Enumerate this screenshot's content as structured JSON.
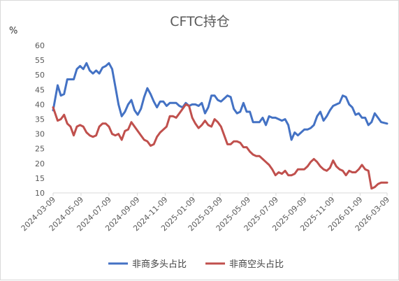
{
  "chart_data": {
    "type": "line",
    "title": "CFTC持仓",
    "unit": "%",
    "xlabel": "",
    "ylabel": "",
    "ylim": [
      10,
      60
    ],
    "yticks": [
      10,
      15,
      20,
      25,
      30,
      35,
      40,
      45,
      50,
      55,
      60
    ],
    "xlim": [
      "2024-03-09",
      "2026-03-09"
    ],
    "xticks": [
      "2024-03-09",
      "2024-05-09",
      "2024-07-09",
      "2024-09-09",
      "2024-11-09",
      "2025-01-09",
      "2025-03-09",
      "2025-05-09",
      "2025-07-09",
      "2025-09-09",
      "2025-11-09",
      "2026-01-09",
      "2026-03-09"
    ],
    "grid": false,
    "legend_position": "bottom",
    "series": [
      {
        "name": "非商多头占比",
        "color": "#4472c4",
        "points": [
          [
            "2024-03-09",
            38
          ],
          [
            "2024-03-19",
            46.5
          ],
          [
            "2024-03-26",
            43
          ],
          [
            "2024-04-02",
            43.5
          ],
          [
            "2024-04-09",
            48.5
          ],
          [
            "2024-04-16",
            48.5
          ],
          [
            "2024-04-23",
            48.5
          ],
          [
            "2024-04-30",
            52
          ],
          [
            "2024-05-07",
            53
          ],
          [
            "2024-05-14",
            52
          ],
          [
            "2024-05-21",
            54
          ],
          [
            "2024-05-28",
            51.5
          ],
          [
            "2024-06-04",
            50.5
          ],
          [
            "2024-06-11",
            51.5
          ],
          [
            "2024-06-18",
            50.5
          ],
          [
            "2024-06-25",
            52.5
          ],
          [
            "2024-07-02",
            53
          ],
          [
            "2024-07-09",
            54
          ],
          [
            "2024-07-16",
            52
          ],
          [
            "2024-07-23",
            46
          ],
          [
            "2024-07-30",
            40
          ],
          [
            "2024-08-06",
            36
          ],
          [
            "2024-08-13",
            37.5
          ],
          [
            "2024-08-20",
            40
          ],
          [
            "2024-08-27",
            41.5
          ],
          [
            "2024-09-03",
            38
          ],
          [
            "2024-09-10",
            36.5
          ],
          [
            "2024-09-17",
            38.5
          ],
          [
            "2024-09-24",
            42.5
          ],
          [
            "2024-10-01",
            45.5
          ],
          [
            "2024-10-08",
            43.5
          ],
          [
            "2024-10-15",
            41
          ],
          [
            "2024-10-22",
            39
          ],
          [
            "2024-10-29",
            41
          ],
          [
            "2024-11-05",
            41
          ],
          [
            "2024-11-12",
            39.5
          ],
          [
            "2024-11-19",
            40.5
          ],
          [
            "2024-11-26",
            40.5
          ],
          [
            "2024-12-03",
            40.5
          ],
          [
            "2024-12-10",
            39.5
          ],
          [
            "2024-12-17",
            39
          ],
          [
            "2024-12-24",
            40.5
          ],
          [
            "2024-12-31",
            39.5
          ],
          [
            "2025-01-07",
            40
          ],
          [
            "2025-01-14",
            40
          ],
          [
            "2025-01-21",
            39.5
          ],
          [
            "2025-01-28",
            40.5
          ],
          [
            "2025-02-04",
            37
          ],
          [
            "2025-02-11",
            39
          ],
          [
            "2025-02-18",
            43
          ],
          [
            "2025-02-25",
            43
          ],
          [
            "2025-03-04",
            41.5
          ],
          [
            "2025-03-11",
            41
          ],
          [
            "2025-03-18",
            42
          ],
          [
            "2025-03-25",
            43
          ],
          [
            "2025-04-01",
            42.5
          ],
          [
            "2025-04-08",
            38.5
          ],
          [
            "2025-04-15",
            37
          ],
          [
            "2025-04-22",
            37.5
          ],
          [
            "2025-04-29",
            40.5
          ],
          [
            "2025-05-06",
            37.5
          ],
          [
            "2025-05-13",
            37.5
          ],
          [
            "2025-05-20",
            34
          ],
          [
            "2025-05-27",
            34
          ],
          [
            "2025-06-03",
            34
          ],
          [
            "2025-06-10",
            35.5
          ],
          [
            "2025-06-17",
            33
          ],
          [
            "2025-06-24",
            36
          ],
          [
            "2025-07-01",
            35.5
          ],
          [
            "2025-07-08",
            35.5
          ],
          [
            "2025-07-15",
            35
          ],
          [
            "2025-07-22",
            34.5
          ],
          [
            "2025-07-29",
            35
          ],
          [
            "2025-08-05",
            33
          ],
          [
            "2025-08-12",
            28
          ],
          [
            "2025-08-19",
            30.5
          ],
          [
            "2025-08-26",
            29.5
          ],
          [
            "2025-09-02",
            30.5
          ],
          [
            "2025-09-09",
            31.5
          ],
          [
            "2025-09-16",
            31.5
          ],
          [
            "2025-09-23",
            32
          ],
          [
            "2025-09-30",
            33
          ],
          [
            "2025-10-07",
            36
          ],
          [
            "2025-10-14",
            37.5
          ],
          [
            "2025-10-21",
            34.5
          ],
          [
            "2025-10-28",
            36
          ],
          [
            "2025-11-04",
            38
          ],
          [
            "2025-11-11",
            39.5
          ],
          [
            "2025-11-18",
            40
          ],
          [
            "2025-11-25",
            40.5
          ],
          [
            "2025-12-02",
            43
          ],
          [
            "2025-12-09",
            42.5
          ],
          [
            "2025-12-16",
            40
          ],
          [
            "2025-12-23",
            39
          ],
          [
            "2025-12-30",
            36.5
          ],
          [
            "2026-01-06",
            37
          ],
          [
            "2026-01-13",
            35.5
          ],
          [
            "2026-01-20",
            35.5
          ],
          [
            "2026-01-27",
            33
          ],
          [
            "2026-02-03",
            34
          ],
          [
            "2026-02-10",
            37
          ],
          [
            "2026-02-17",
            35.5
          ],
          [
            "2026-02-24",
            34
          ],
          [
            "2026-03-09",
            33.5
          ]
        ]
      },
      {
        "name": "非商空头占比",
        "color": "#c0504d",
        "points": [
          [
            "2024-03-09",
            39
          ],
          [
            "2024-03-19",
            34.5
          ],
          [
            "2024-03-26",
            35
          ],
          [
            "2024-04-02",
            36.5
          ],
          [
            "2024-04-09",
            33.5
          ],
          [
            "2024-04-16",
            32.5
          ],
          [
            "2024-04-23",
            29.5
          ],
          [
            "2024-04-30",
            32.5
          ],
          [
            "2024-05-07",
            33
          ],
          [
            "2024-05-14",
            32.5
          ],
          [
            "2024-05-21",
            30.5
          ],
          [
            "2024-05-28",
            29.5
          ],
          [
            "2024-06-04",
            29
          ],
          [
            "2024-06-11",
            29.5
          ],
          [
            "2024-06-18",
            32.5
          ],
          [
            "2024-06-25",
            33.5
          ],
          [
            "2024-07-02",
            33.5
          ],
          [
            "2024-07-09",
            32.5
          ],
          [
            "2024-07-16",
            30
          ],
          [
            "2024-07-23",
            29.5
          ],
          [
            "2024-07-30",
            30
          ],
          [
            "2024-08-06",
            28
          ],
          [
            "2024-08-13",
            31
          ],
          [
            "2024-08-20",
            31.5
          ],
          [
            "2024-08-27",
            34
          ],
          [
            "2024-09-03",
            32.5
          ],
          [
            "2024-09-10",
            31
          ],
          [
            "2024-09-17",
            29.5
          ],
          [
            "2024-09-24",
            28
          ],
          [
            "2024-10-01",
            27.5
          ],
          [
            "2024-10-08",
            26
          ],
          [
            "2024-10-15",
            26.5
          ],
          [
            "2024-10-22",
            29
          ],
          [
            "2024-10-29",
            30.5
          ],
          [
            "2024-11-05",
            31.5
          ],
          [
            "2024-11-12",
            32.5
          ],
          [
            "2024-11-19",
            36
          ],
          [
            "2024-11-26",
            36
          ],
          [
            "2024-12-03",
            35.5
          ],
          [
            "2024-12-10",
            37
          ],
          [
            "2024-12-17",
            38.5
          ],
          [
            "2024-12-24",
            40
          ],
          [
            "2024-12-31",
            39.5
          ],
          [
            "2025-01-07",
            35.5
          ],
          [
            "2025-01-14",
            33.5
          ],
          [
            "2025-01-21",
            32
          ],
          [
            "2025-01-28",
            33
          ],
          [
            "2025-02-04",
            34.5
          ],
          [
            "2025-02-11",
            33
          ],
          [
            "2025-02-18",
            32.5
          ],
          [
            "2025-02-25",
            35
          ],
          [
            "2025-03-04",
            34
          ],
          [
            "2025-03-11",
            32.5
          ],
          [
            "2025-03-18",
            29.5
          ],
          [
            "2025-03-25",
            26.5
          ],
          [
            "2025-04-01",
            26.5
          ],
          [
            "2025-04-08",
            27.5
          ],
          [
            "2025-04-15",
            27.5
          ],
          [
            "2025-04-22",
            27
          ],
          [
            "2025-04-29",
            25.5
          ],
          [
            "2025-05-06",
            25.5
          ],
          [
            "2025-05-13",
            24
          ],
          [
            "2025-05-20",
            23
          ],
          [
            "2025-05-27",
            22.5
          ],
          [
            "2025-06-03",
            22.5
          ],
          [
            "2025-06-10",
            21.5
          ],
          [
            "2025-06-17",
            20.5
          ],
          [
            "2025-06-24",
            19.5
          ],
          [
            "2025-07-01",
            18
          ],
          [
            "2025-07-08",
            16
          ],
          [
            "2025-07-15",
            17
          ],
          [
            "2025-07-22",
            16.5
          ],
          [
            "2025-07-29",
            17.5
          ],
          [
            "2025-08-05",
            16
          ],
          [
            "2025-08-12",
            16
          ],
          [
            "2025-08-19",
            16.5
          ],
          [
            "2025-08-26",
            18
          ],
          [
            "2025-09-02",
            18
          ],
          [
            "2025-09-09",
            18
          ],
          [
            "2025-09-16",
            19
          ],
          [
            "2025-09-23",
            20.5
          ],
          [
            "2025-09-30",
            21.5
          ],
          [
            "2025-10-07",
            20.5
          ],
          [
            "2025-10-14",
            19
          ],
          [
            "2025-10-21",
            18
          ],
          [
            "2025-10-28",
            17.5
          ],
          [
            "2025-11-04",
            18.5
          ],
          [
            "2025-11-11",
            21
          ],
          [
            "2025-11-18",
            19
          ],
          [
            "2025-11-25",
            18
          ],
          [
            "2025-12-02",
            17.5
          ],
          [
            "2025-12-09",
            16
          ],
          [
            "2025-12-16",
            17.5
          ],
          [
            "2025-12-23",
            17
          ],
          [
            "2025-12-30",
            17
          ],
          [
            "2026-01-06",
            18
          ],
          [
            "2026-01-13",
            19.5
          ],
          [
            "2026-01-20",
            18
          ],
          [
            "2026-01-27",
            17.5
          ],
          [
            "2026-02-03",
            11.5
          ],
          [
            "2026-02-10",
            12
          ],
          [
            "2026-02-17",
            13
          ],
          [
            "2026-02-24",
            13.5
          ],
          [
            "2026-03-09",
            13.5
          ]
        ]
      }
    ]
  }
}
